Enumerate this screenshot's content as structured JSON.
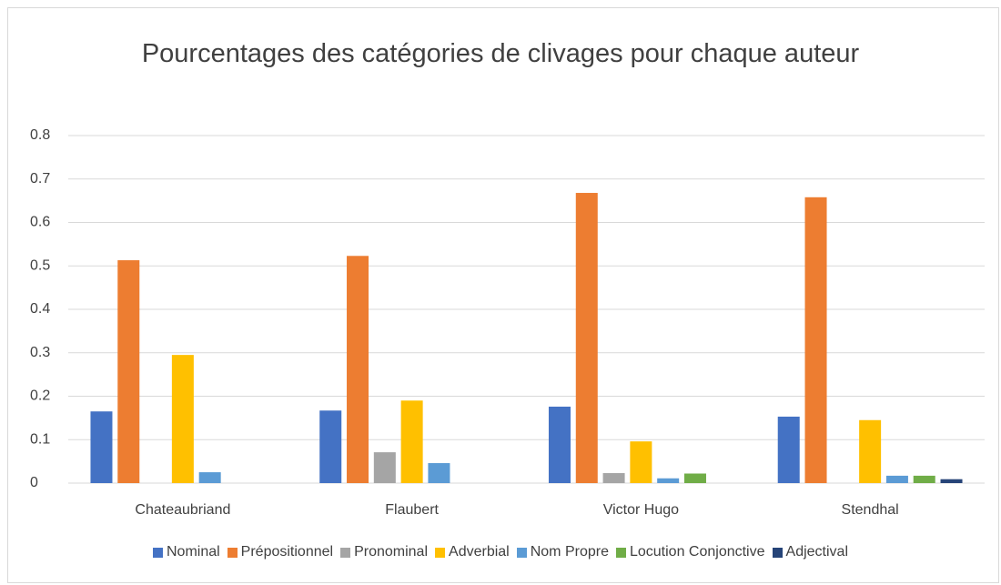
{
  "chart_data": {
    "type": "bar",
    "title": "Pourcentages des catégories de clivages pour chaque auteur",
    "categories": [
      "Chateaubriand",
      "Flaubert",
      "Victor Hugo",
      "Stendhal"
    ],
    "series": [
      {
        "name": "Nominal",
        "color": "#4472c4",
        "values": [
          0.165,
          0.167,
          0.176,
          0.153
        ]
      },
      {
        "name": "Prépositionnel",
        "color": "#ed7d31",
        "values": [
          0.513,
          0.523,
          0.668,
          0.658
        ]
      },
      {
        "name": "Pronominal",
        "color": "#a5a5a5",
        "values": [
          0,
          0.071,
          0.023,
          0
        ]
      },
      {
        "name": "Adverbial",
        "color": "#ffc000",
        "values": [
          0.295,
          0.19,
          0.096,
          0.145
        ]
      },
      {
        "name": "Nom Propre",
        "color": "#5b9bd5",
        "values": [
          0.025,
          0.046,
          0.011,
          0.017
        ]
      },
      {
        "name": "Locution Conjonctive",
        "color": "#70ad47",
        "values": [
          0,
          0,
          0.022,
          0.017
        ]
      },
      {
        "name": "Adjectival",
        "color": "#264478",
        "values": [
          0,
          0,
          0,
          0.009
        ]
      }
    ],
    "ylim": [
      0,
      0.8
    ],
    "yticks": [
      0,
      0.1,
      0.2,
      0.3,
      0.4,
      0.5,
      0.6,
      0.7,
      0.8
    ],
    "grid": true,
    "legend": "bottom"
  }
}
